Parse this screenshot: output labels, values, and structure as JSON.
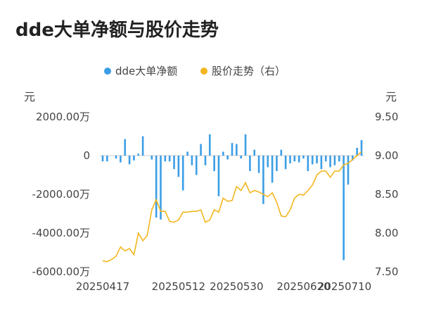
{
  "title": "dde大单净额与股价走势",
  "chart_data": {
    "type": "bar+line",
    "legend": {
      "bar_series": "dde大单净额",
      "line_series": "股价走势（右）",
      "placement": "top-center"
    },
    "left_axis": {
      "unit": "元",
      "ticks": [
        "2000.00万",
        "0",
        "-2000.00万",
        "-4000.00万",
        "-6000.00万"
      ],
      "min": -6000,
      "max": 2000
    },
    "right_axis": {
      "unit": "元",
      "ticks": [
        "9.50",
        "9.00",
        "8.50",
        "8.00",
        "7.50"
      ],
      "min": 7.5,
      "max": 9.5
    },
    "x_tick_labels": [
      "20250417",
      "20250512",
      "20250530",
      "20250620",
      "20250710"
    ],
    "x_tick_indices": [
      0,
      17,
      30,
      45,
      60
    ],
    "colors": {
      "bar": "#3b9ee6",
      "line": "#f3b61f",
      "zero_line": "#cccccc"
    },
    "bar_values": [
      -300,
      -300,
      0,
      -150,
      -350,
      850,
      -450,
      -250,
      100,
      1000,
      0,
      -200,
      -3200,
      -3300,
      -300,
      -300,
      -700,
      -1100,
      -1800,
      200,
      -500,
      -1000,
      600,
      -500,
      1100,
      -800,
      -2100,
      200,
      -200,
      650,
      600,
      -150,
      1100,
      -800,
      300,
      -900,
      -2500,
      -600,
      -1400,
      -800,
      300,
      -700,
      -400,
      -300,
      -350,
      -150,
      -800,
      -450,
      -400,
      -700,
      -300,
      -600,
      -500,
      -300,
      -5400,
      -1500,
      -250,
      400,
      800
    ],
    "line_values": [
      7.64,
      7.63,
      7.66,
      7.7,
      7.82,
      7.77,
      7.8,
      7.72,
      8.0,
      7.9,
      7.97,
      8.3,
      8.43,
      8.28,
      8.28,
      8.15,
      8.14,
      8.17,
      8.27,
      8.27,
      8.28,
      8.28,
      8.3,
      8.14,
      8.17,
      8.3,
      8.27,
      8.45,
      8.41,
      8.42,
      8.6,
      8.55,
      8.65,
      8.52,
      8.55,
      8.53,
      8.5,
      8.47,
      8.52,
      8.4,
      8.22,
      8.21,
      8.3,
      8.45,
      8.5,
      8.49,
      8.55,
      8.62,
      8.75,
      8.8,
      8.8,
      8.72,
      8.8,
      8.8,
      8.88,
      8.9,
      8.95,
      9.0,
      9.05
    ]
  }
}
